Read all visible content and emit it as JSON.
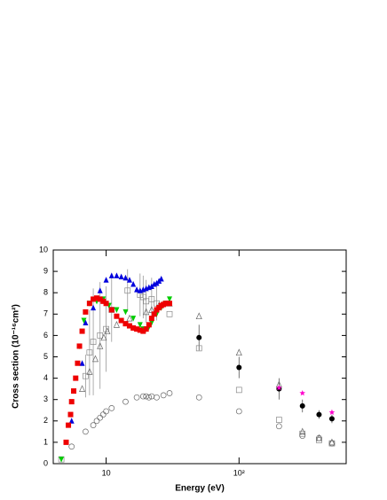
{
  "chart_data": {
    "type": "scatter",
    "xlabel": "Energy (eV)",
    "ylabel": "Cross section (10⁻¹⁶cm²)",
    "xlog": true,
    "xlim": [
      4,
      640
    ],
    "ylim": [
      0,
      10
    ],
    "xticks": [
      10,
      {
        "value": 100,
        "label": "10²"
      }
    ],
    "yticks": [
      0,
      1,
      2,
      3,
      4,
      5,
      6,
      7,
      8,
      9,
      10
    ],
    "series": [
      {
        "color": "#888888",
        "marker": "square",
        "filled": false,
        "x": [
          4.6,
          7,
          7.5,
          8,
          9,
          10,
          11,
          14.5,
          18,
          19,
          20,
          22,
          24,
          30,
          50,
          100,
          200,
          300,
          400,
          500
        ],
        "values": [
          0.2,
          4.1,
          5.2,
          5.7,
          6.0,
          6.3,
          7.2,
          8.1,
          7.9,
          7.8,
          7.6,
          7.7,
          7.5,
          7.0,
          5.4,
          3.45,
          2.05,
          1.4,
          1.1,
          0.95
        ],
        "errors": [
          0,
          1,
          2,
          2.5,
          2.5,
          2,
          1.5,
          1,
          1,
          1,
          1,
          1,
          0.8,
          0,
          0,
          0,
          0,
          0,
          0,
          0
        ]
      },
      {
        "color": "#666666",
        "marker": "triangle",
        "filled": false,
        "x": [
          6.6,
          7.5,
          8.3,
          9,
          9.6,
          10.2,
          12,
          15,
          20,
          22,
          25,
          30,
          50,
          100,
          200,
          300,
          400,
          500
        ],
        "values": [
          3.5,
          4.3,
          4.9,
          5.5,
          5.9,
          6.2,
          6.5,
          6.8,
          7.1,
          7.2,
          7.4,
          7.5,
          6.9,
          5.2,
          3.7,
          1.5,
          1.2,
          1.0
        ]
      },
      {
        "color": "#666666",
        "marker": "circle",
        "filled": false,
        "x": [
          5.5,
          7,
          8,
          8.5,
          9,
          9.5,
          10,
          11,
          14,
          17,
          19,
          20,
          21,
          22,
          24,
          27,
          30,
          50,
          100,
          200,
          300,
          400,
          500
        ],
        "values": [
          0.8,
          1.5,
          1.8,
          2.0,
          2.15,
          2.3,
          2.45,
          2.6,
          2.9,
          3.1,
          3.15,
          3.15,
          3.1,
          3.15,
          3.1,
          3.2,
          3.3,
          3.1,
          2.45,
          1.75,
          1.3,
          1.2,
          0.95
        ]
      },
      {
        "color": "#0000dd",
        "marker": "triangle",
        "filled": true,
        "x": [
          5.5,
          6.6,
          7,
          8,
          9,
          10,
          11,
          12,
          13,
          14,
          15,
          16,
          17,
          18,
          19,
          20,
          21,
          22,
          23,
          24,
          25,
          26
        ],
        "values": [
          2.0,
          4.7,
          6.6,
          7.3,
          8.1,
          8.6,
          8.8,
          8.8,
          8.75,
          8.7,
          8.6,
          8.4,
          8.15,
          8.1,
          8.15,
          8.2,
          8.25,
          8.3,
          8.4,
          8.45,
          8.55,
          8.65
        ]
      },
      {
        "color": "#00cc00",
        "marker": "triangle-down",
        "filled": true,
        "x": [
          4.6,
          6.3,
          6.8,
          7.5,
          8.5,
          9.5,
          10.5,
          12,
          14,
          16,
          18,
          19,
          20,
          21,
          22,
          24,
          26,
          28,
          30
        ],
        "values": [
          0.2,
          5.5,
          6.7,
          7.5,
          7.6,
          7.7,
          7.4,
          7.2,
          7.1,
          6.8,
          6.5,
          6.3,
          6.3,
          6.4,
          6.6,
          7.0,
          7.3,
          7.5,
          7.7
        ]
      },
      {
        "color": "#ee0000",
        "marker": "square",
        "filled": true,
        "x": [
          5.0,
          5.2,
          5.4,
          5.5,
          5.7,
          5.9,
          6.1,
          6.3,
          6.6,
          7.0,
          7.5,
          8.0,
          8.5,
          9.0,
          9.5,
          10,
          11,
          12,
          13,
          14,
          15,
          16,
          17,
          18,
          19,
          20,
          21,
          22,
          23,
          24,
          25,
          26,
          27,
          28,
          29,
          30
        ],
        "values": [
          1.0,
          1.8,
          2.3,
          2.9,
          3.4,
          4.0,
          4.7,
          5.5,
          6.2,
          7.1,
          7.5,
          7.7,
          7.75,
          7.7,
          7.6,
          7.5,
          7.2,
          6.9,
          6.7,
          6.55,
          6.45,
          6.35,
          6.3,
          6.25,
          6.2,
          6.3,
          6.5,
          6.8,
          7.0,
          7.2,
          7.3,
          7.4,
          7.45,
          7.5,
          7.5,
          7.5
        ]
      },
      {
        "color": "#000000",
        "marker": "circle",
        "filled": true,
        "x": [
          50,
          100,
          200,
          300,
          400,
          500
        ],
        "values": [
          5.9,
          4.5,
          3.5,
          2.7,
          2.3,
          2.1
        ],
        "errors": [
          0.6,
          0.5,
          0.5,
          0.3,
          0.2,
          0.2
        ]
      },
      {
        "color": "#ff00cc",
        "marker": "star",
        "filled": true,
        "x": [
          200,
          300,
          500
        ],
        "values": [
          3.55,
          3.3,
          2.4
        ]
      }
    ]
  }
}
